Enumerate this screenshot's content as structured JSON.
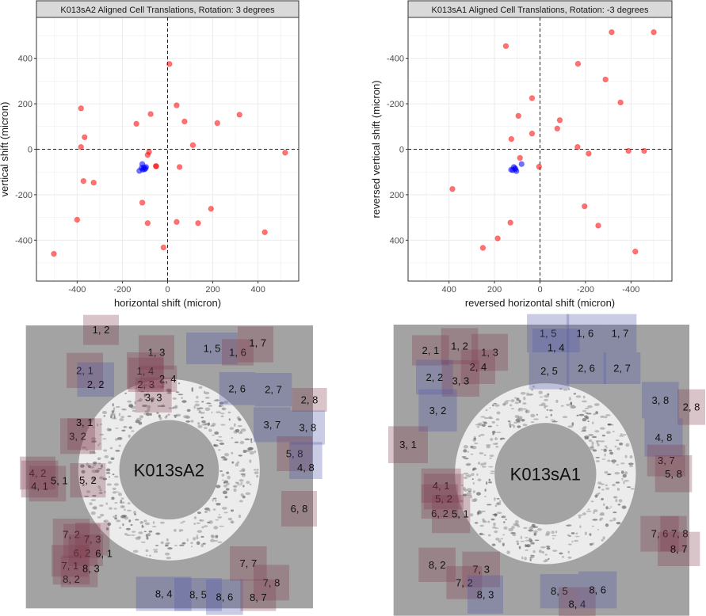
{
  "chart_data": [
    {
      "type": "scatter",
      "title": "K013sA2 Aligned Cell Translations, Rotation: 3 degrees",
      "xlabel": "horizontal shift (micron)",
      "ylabel": "vertical shift (micron)",
      "xlim": [
        -580,
        580
      ],
      "ylim": [
        -580,
        580
      ],
      "x_reversed": false,
      "y_reversed": false,
      "xticks": [
        "-400",
        "-200",
        "0",
        "200",
        "400"
      ],
      "yticks": [
        "-400",
        "-200",
        "0",
        "200",
        "400"
      ],
      "xtick_values": [
        -400,
        -200,
        0,
        200,
        400
      ],
      "ytick_values": [
        -400,
        -200,
        0,
        200,
        400
      ],
      "grid": true,
      "series": [
        {
          "name": "red",
          "color": "#ff0000",
          "points": [
            [
              8,
              375
            ],
            [
              40,
              193
            ],
            [
              -75,
              155
            ],
            [
              -138,
              112
            ],
            [
              75,
              122
            ],
            [
              220,
              115
            ],
            [
              318,
              152
            ],
            [
              -383,
              180
            ],
            [
              -367,
              53
            ],
            [
              -383,
              10
            ],
            [
              112,
              18
            ],
            [
              520,
              -15
            ],
            [
              -82,
              -12
            ],
            [
              -88,
              -25
            ],
            [
              -50,
              -75
            ],
            [
              -52,
              -74
            ],
            [
              53,
              -78
            ],
            [
              -372,
              -140
            ],
            [
              -327,
              -147
            ],
            [
              -112,
              -235
            ],
            [
              -400,
              -310
            ],
            [
              -88,
              -325
            ],
            [
              40,
              -320
            ],
            [
              135,
              -325
            ],
            [
              192,
              -262
            ],
            [
              430,
              -365
            ],
            [
              -18,
              -432
            ],
            [
              -503,
              -460
            ]
          ]
        },
        {
          "name": "blue",
          "color": "#0000ff",
          "points": [
            [
              -112,
              -65
            ],
            [
              -125,
              -95
            ],
            [
              -105,
              -80
            ],
            [
              -98,
              -85
            ],
            [
              -110,
              -90
            ],
            [
              -95,
              -78
            ],
            [
              -115,
              -82
            ],
            [
              -102,
              -88
            ]
          ]
        }
      ]
    },
    {
      "type": "scatter",
      "title": "K013sA1 Aligned Cell Translations, Rotation: -3 degrees",
      "xlabel": "reversed horizontal shift (micron)",
      "ylabel": "reversed vertical shift (micron)",
      "xlim": [
        580,
        -580
      ],
      "ylim": [
        580,
        -580
      ],
      "x_reversed": true,
      "y_reversed": true,
      "xticks": [
        "400",
        "200",
        "0",
        "-200",
        "-400"
      ],
      "yticks": [
        "-400",
        "-200",
        "0",
        "200",
        "400"
      ],
      "xtick_values": [
        400,
        200,
        0,
        -200,
        -400
      ],
      "ytick_values": [
        -400,
        -200,
        0,
        200,
        400
      ],
      "grid": true,
      "series": [
        {
          "name": "red",
          "color": "#ff0000",
          "points": [
            [
              -315,
              -515
            ],
            [
              -500,
              -515
            ],
            [
              150,
              -454
            ],
            [
              -167,
              -376
            ],
            [
              -288,
              -307
            ],
            [
              -354,
              -206
            ],
            [
              35,
              -225
            ],
            [
              95,
              -147
            ],
            [
              -87,
              -128
            ],
            [
              -76,
              -91
            ],
            [
              126,
              -45
            ],
            [
              35,
              -69
            ],
            [
              -165,
              -10
            ],
            [
              -214,
              19
            ],
            [
              -389,
              7
            ],
            [
              -458,
              7
            ],
            [
              88,
              38
            ],
            [
              4,
              77
            ],
            [
              385,
              175
            ],
            [
              -196,
              251
            ],
            [
              130,
              323
            ],
            [
              -256,
              336
            ],
            [
              186,
              392
            ],
            [
              251,
              434
            ],
            [
              -419,
              450
            ]
          ]
        },
        {
          "name": "blue",
          "color": "#0000ff",
          "points": [
            [
              81,
              65
            ],
            [
              110,
              84
            ],
            [
              127,
              90
            ],
            [
              104,
              96
            ],
            [
              115,
              78
            ],
            [
              120,
              92
            ],
            [
              108,
              88
            ]
          ]
        }
      ]
    }
  ],
  "images": [
    {
      "label": "K013sA2",
      "tiles": [
        {
          "label": "1, 2",
          "tone": "red"
        },
        {
          "label": "1, 3",
          "tone": "red"
        },
        {
          "label": "1, 5",
          "tone": "blue"
        },
        {
          "label": "1, 6",
          "tone": "red"
        },
        {
          "label": "1, 7",
          "tone": "red"
        },
        {
          "label": "2, 1",
          "tone": "red"
        },
        {
          "label": "2, 2",
          "tone": "blue"
        },
        {
          "label": "1, 4",
          "tone": "red"
        },
        {
          "label": "2, 3",
          "tone": "red"
        },
        {
          "label": "2, 4",
          "tone": "red"
        },
        {
          "label": "3, 3",
          "tone": "red"
        },
        {
          "label": "2, 6",
          "tone": "blue"
        },
        {
          "label": "2, 7",
          "tone": "blue"
        },
        {
          "label": "2, 8",
          "tone": "red"
        },
        {
          "label": "3, 7",
          "tone": "blue"
        },
        {
          "label": "3, 8",
          "tone": "blue"
        },
        {
          "label": "3, 2",
          "tone": "red"
        },
        {
          "label": "3, 1",
          "tone": "red"
        },
        {
          "label": "5, 8",
          "tone": "red"
        },
        {
          "label": "4, 8",
          "tone": "blue"
        },
        {
          "label": "4, 2",
          "tone": "red"
        },
        {
          "label": "4, 1",
          "tone": "red"
        },
        {
          "label": "5, 1",
          "tone": "red"
        },
        {
          "label": "5, 2",
          "tone": "red"
        },
        {
          "label": "6, 8",
          "tone": "red"
        },
        {
          "label": "7, 2",
          "tone": "red"
        },
        {
          "label": "7, 3",
          "tone": "red"
        },
        {
          "label": "6, 2",
          "tone": "red"
        },
        {
          "label": "6, 1",
          "tone": "red"
        },
        {
          "label": "7, 1",
          "tone": "red"
        },
        {
          "label": "8, 2",
          "tone": "red"
        },
        {
          "label": "8, 3",
          "tone": "red"
        },
        {
          "label": "8, 4",
          "tone": "blue"
        },
        {
          "label": "8, 5",
          "tone": "blue"
        },
        {
          "label": "8, 6",
          "tone": "blue"
        },
        {
          "label": "7, 7",
          "tone": "red"
        },
        {
          "label": "7, 8",
          "tone": "red"
        },
        {
          "label": "8, 7",
          "tone": "red"
        }
      ]
    },
    {
      "label": "K013sA1",
      "tiles": [
        {
          "label": "2, 1",
          "tone": "red"
        },
        {
          "label": "1, 2",
          "tone": "red"
        },
        {
          "label": "1, 3",
          "tone": "red"
        },
        {
          "label": "2, 2",
          "tone": "blue"
        },
        {
          "label": "2, 4",
          "tone": "red"
        },
        {
          "label": "3, 3",
          "tone": "red"
        },
        {
          "label": "1, 5",
          "tone": "blue"
        },
        {
          "label": "1, 4",
          "tone": "blue"
        },
        {
          "label": "1, 6",
          "tone": "blue"
        },
        {
          "label": "1, 7",
          "tone": "blue"
        },
        {
          "label": "2, 5",
          "tone": "blue"
        },
        {
          "label": "2, 6",
          "tone": "blue"
        },
        {
          "label": "2, 7",
          "tone": "blue"
        },
        {
          "label": "3, 2",
          "tone": "blue"
        },
        {
          "label": "3, 1",
          "tone": "red"
        },
        {
          "label": "3, 8",
          "tone": "blue"
        },
        {
          "label": "2, 8",
          "tone": "red"
        },
        {
          "label": "4, 8",
          "tone": "blue"
        },
        {
          "label": "3, 7",
          "tone": "red"
        },
        {
          "label": "5, 8",
          "tone": "red"
        },
        {
          "label": "4, 1",
          "tone": "red"
        },
        {
          "label": "5, 2",
          "tone": "red"
        },
        {
          "label": "6, 2",
          "tone": "red"
        },
        {
          "label": "5, 1",
          "tone": "red"
        },
        {
          "label": "7, 6",
          "tone": "red"
        },
        {
          "label": "7, 8",
          "tone": "red"
        },
        {
          "label": "8, 7",
          "tone": "red"
        },
        {
          "label": "8, 2",
          "tone": "red"
        },
        {
          "label": "7, 3",
          "tone": "red"
        },
        {
          "label": "7, 2",
          "tone": "red"
        },
        {
          "label": "8, 3",
          "tone": "blue"
        },
        {
          "label": "8, 5",
          "tone": "blue"
        },
        {
          "label": "8, 4",
          "tone": "red"
        },
        {
          "label": "8, 6",
          "tone": "blue"
        }
      ]
    }
  ],
  "colors": {
    "red_tile": "#823c50",
    "blue_tile": "#5055aa",
    "background": "#a3a3a3"
  }
}
